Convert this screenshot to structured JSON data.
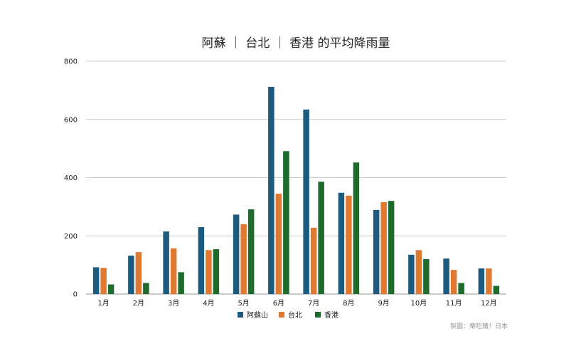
{
  "chart_data": {
    "type": "bar",
    "title": "阿蘇 ｜ 台北 ｜ 香港 的平均降雨量",
    "categories": [
      "1月",
      "2月",
      "3月",
      "4月",
      "5月",
      "6月",
      "7月",
      "8月",
      "9月",
      "10月",
      "11月",
      "12月"
    ],
    "series": [
      {
        "name": "阿蘇山",
        "color": "#1c5a7e",
        "values": [
          92,
          132,
          215,
          230,
          273,
          712,
          634,
          348,
          289,
          135,
          122,
          88
        ]
      },
      {
        "name": "台北",
        "color": "#e07a33",
        "values": [
          90,
          144,
          157,
          151,
          240,
          345,
          228,
          338,
          316,
          151,
          83,
          88
        ]
      },
      {
        "name": "香港",
        "color": "#1f6b2d",
        "values": [
          33,
          38,
          75,
          154,
          291,
          491,
          386,
          452,
          320,
          120,
          38,
          28
        ]
      }
    ],
    "yticks": [
      0,
      200,
      400,
      600,
      800
    ],
    "ylim": [
      0,
      800
    ],
    "grid": true,
    "legend": "bottom",
    "credit": "製圖：樂吃購！日本"
  }
}
